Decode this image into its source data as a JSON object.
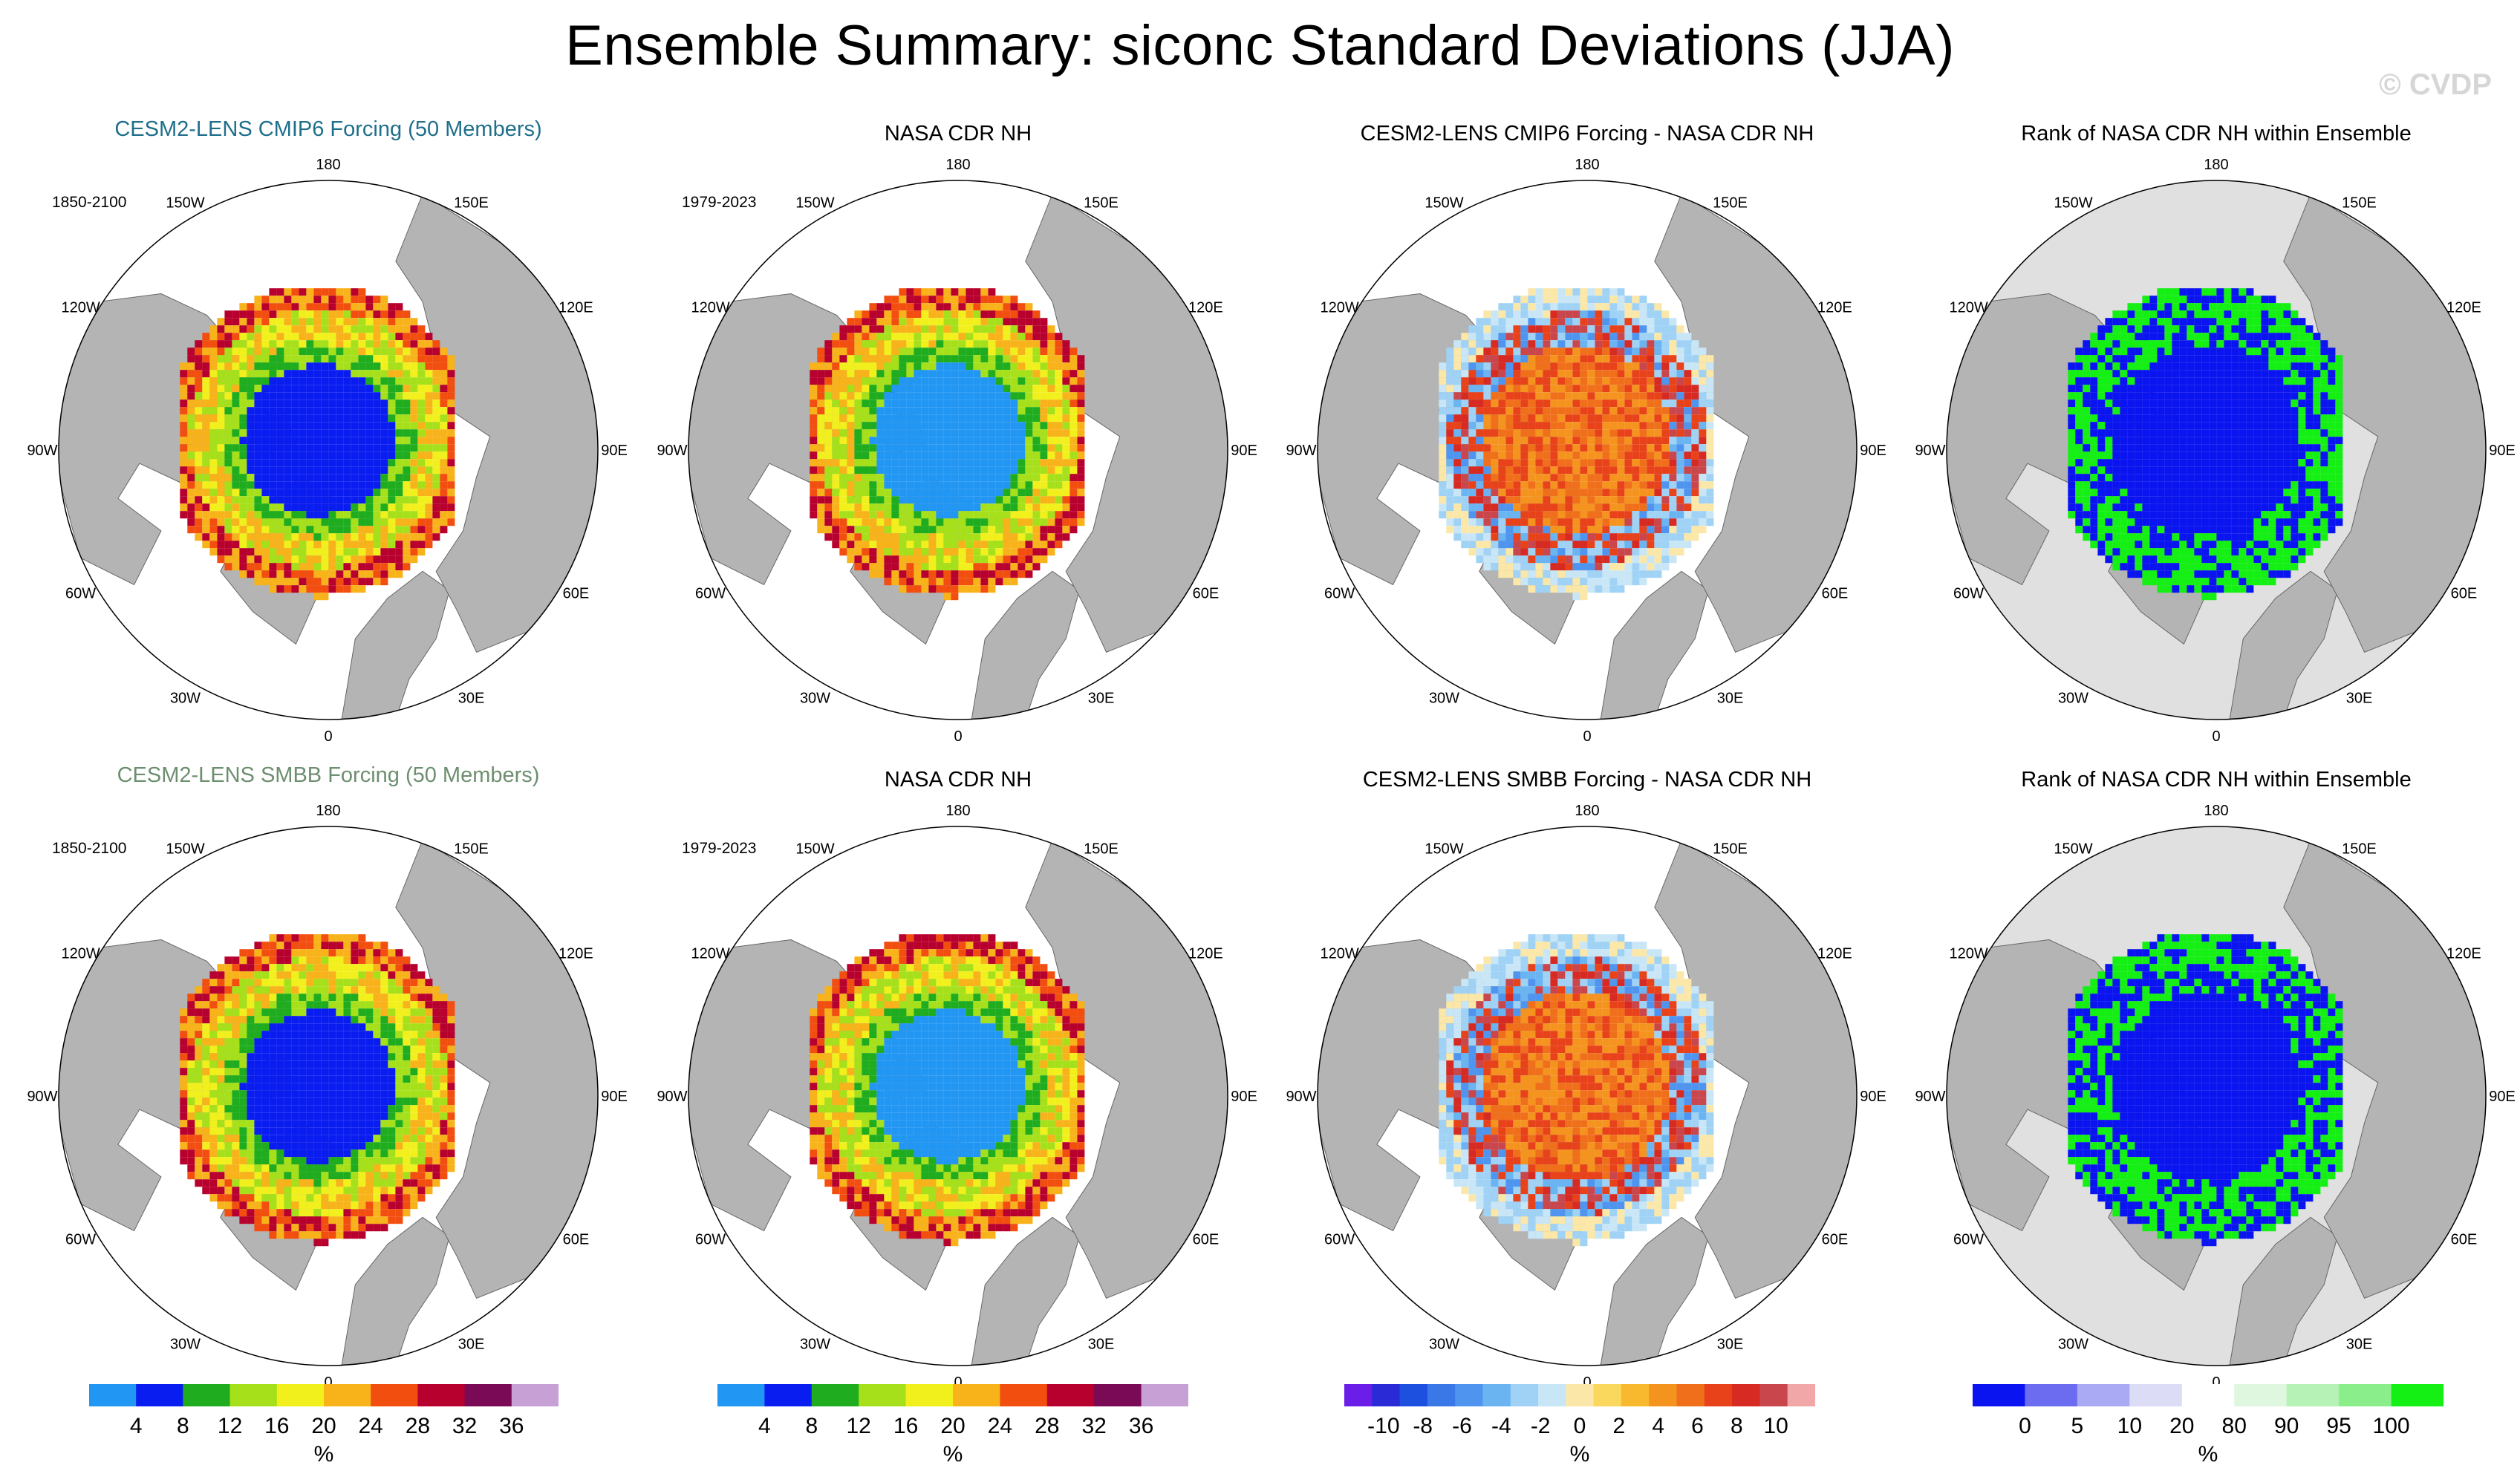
{
  "title": "Ensemble Summary: siconc Standard Deviations (JJA)",
  "watermark": "© CVDP",
  "colors": {
    "land": "#b4b4b4",
    "ocean": "#ffffff",
    "rank_background": "#e0e0e0",
    "cmip6_title": "#1f6f8b",
    "smbb_title": "#6d8f6f"
  },
  "lon_labels": [
    "180",
    "150E",
    "120E",
    "90E",
    "60E",
    "30E",
    "0",
    "30W",
    "60W",
    "90W",
    "120W",
    "150W"
  ],
  "rows": [
    {
      "panels": [
        {
          "title": "CESM2-LENS CMIP6 Forcing (50 Members)",
          "period": "1850-2100",
          "kind": "ensemble"
        },
        {
          "title": "NASA CDR NH",
          "period": "1979-2023",
          "kind": "obs"
        },
        {
          "title": "CESM2-LENS CMIP6 Forcing - NASA CDR NH",
          "period": "",
          "kind": "diff"
        },
        {
          "title": "Rank of NASA CDR NH within Ensemble",
          "period": "",
          "kind": "rank"
        }
      ]
    },
    {
      "panels": [
        {
          "title": "CESM2-LENS SMBB Forcing (50 Members)",
          "period": "1850-2100",
          "kind": "ensemble"
        },
        {
          "title": "NASA CDR NH",
          "period": "1979-2023",
          "kind": "obs"
        },
        {
          "title": "CESM2-LENS SMBB Forcing - NASA CDR NH",
          "period": "",
          "kind": "diff"
        },
        {
          "title": "Rank of NASA CDR NH within Ensemble",
          "period": "",
          "kind": "rank"
        }
      ]
    }
  ],
  "colorbars": [
    {
      "unit": "%",
      "ticks": [
        "4",
        "8",
        "12",
        "16",
        "20",
        "24",
        "28",
        "32",
        "36"
      ],
      "colors": [
        "#2196f3",
        "#0a1df0",
        "#1fad1f",
        "#a6e01a",
        "#f2f01c",
        "#f8b21a",
        "#f24e0f",
        "#b8002e",
        "#7a0a55",
        "#c7a1d6"
      ]
    },
    {
      "unit": "%",
      "ticks": [
        "4",
        "8",
        "12",
        "16",
        "20",
        "24",
        "28",
        "32",
        "36"
      ],
      "colors": [
        "#2196f3",
        "#0a1df0",
        "#1fad1f",
        "#a6e01a",
        "#f2f01c",
        "#f8b21a",
        "#f24e0f",
        "#b8002e",
        "#7a0a55",
        "#c7a1d6"
      ]
    },
    {
      "unit": "%",
      "ticks": [
        "-10",
        "-8",
        "-6",
        "-4",
        "-2",
        "0",
        "2",
        "4",
        "6",
        "8",
        "10"
      ],
      "colors": [
        "#6a1ee8",
        "#2a2ad6",
        "#1e50e0",
        "#3a78e8",
        "#4f95ef",
        "#6ab4f2",
        "#9fd2f5",
        "#c9e6f7",
        "#fbe7a8",
        "#fad75d",
        "#f8b92e",
        "#f5931f",
        "#f06f1a",
        "#e8421b",
        "#d62a22",
        "#c9464c",
        "#f1a6a8"
      ]
    },
    {
      "unit": "%",
      "ticks": [
        "0",
        "5",
        "10",
        "20",
        "80",
        "90",
        "95",
        "100"
      ],
      "colors": [
        "#0a14f0",
        "#6c6cf0",
        "#aaaaf4",
        "#dcdcf6",
        "#ffffff",
        "#dff7df",
        "#b6f2b6",
        "#8aef8a",
        "#14f014"
      ]
    }
  ],
  "chart_data": {
    "type": "heatmap",
    "title": "Ensemble Summary: siconc Standard Deviations (JJA)",
    "variable": "siconc",
    "season": "JJA",
    "panels": [
      {
        "row": 1,
        "title": "CESM2-LENS CMIP6 Forcing (50 Members)",
        "period": "1850-2100",
        "colorbar_ticks": [
          4,
          8,
          12,
          16,
          20,
          24,
          28,
          32,
          36
        ],
        "unit": "%"
      },
      {
        "row": 1,
        "title": "NASA CDR NH",
        "period": "1979-2023",
        "colorbar_ticks": [
          4,
          8,
          12,
          16,
          20,
          24,
          28,
          32,
          36
        ],
        "unit": "%"
      },
      {
        "row": 1,
        "title": "CESM2-LENS CMIP6 Forcing - NASA CDR NH",
        "colorbar_ticks": [
          -10,
          -8,
          -6,
          -4,
          -2,
          0,
          2,
          4,
          6,
          8,
          10
        ],
        "unit": "%"
      },
      {
        "row": 1,
        "title": "Rank of NASA CDR NH within Ensemble",
        "colorbar_ticks": [
          0,
          5,
          10,
          20,
          80,
          90,
          95,
          100
        ],
        "unit": "%"
      },
      {
        "row": 2,
        "title": "CESM2-LENS SMBB Forcing (50 Members)",
        "period": "1850-2100",
        "colorbar_ticks": [
          4,
          8,
          12,
          16,
          20,
          24,
          28,
          32,
          36
        ],
        "unit": "%"
      },
      {
        "row": 2,
        "title": "NASA CDR NH",
        "period": "1979-2023",
        "colorbar_ticks": [
          4,
          8,
          12,
          16,
          20,
          24,
          28,
          32,
          36
        ],
        "unit": "%"
      },
      {
        "row": 2,
        "title": "CESM2-LENS SMBB Forcing - NASA CDR NH",
        "colorbar_ticks": [
          -10,
          -8,
          -6,
          -4,
          -2,
          0,
          2,
          4,
          6,
          8,
          10
        ],
        "unit": "%"
      },
      {
        "row": 2,
        "title": "Rank of NASA CDR NH within Ensemble",
        "colorbar_ticks": [
          0,
          5,
          10,
          20,
          80,
          90,
          95,
          100
        ],
        "unit": "%"
      }
    ]
  }
}
